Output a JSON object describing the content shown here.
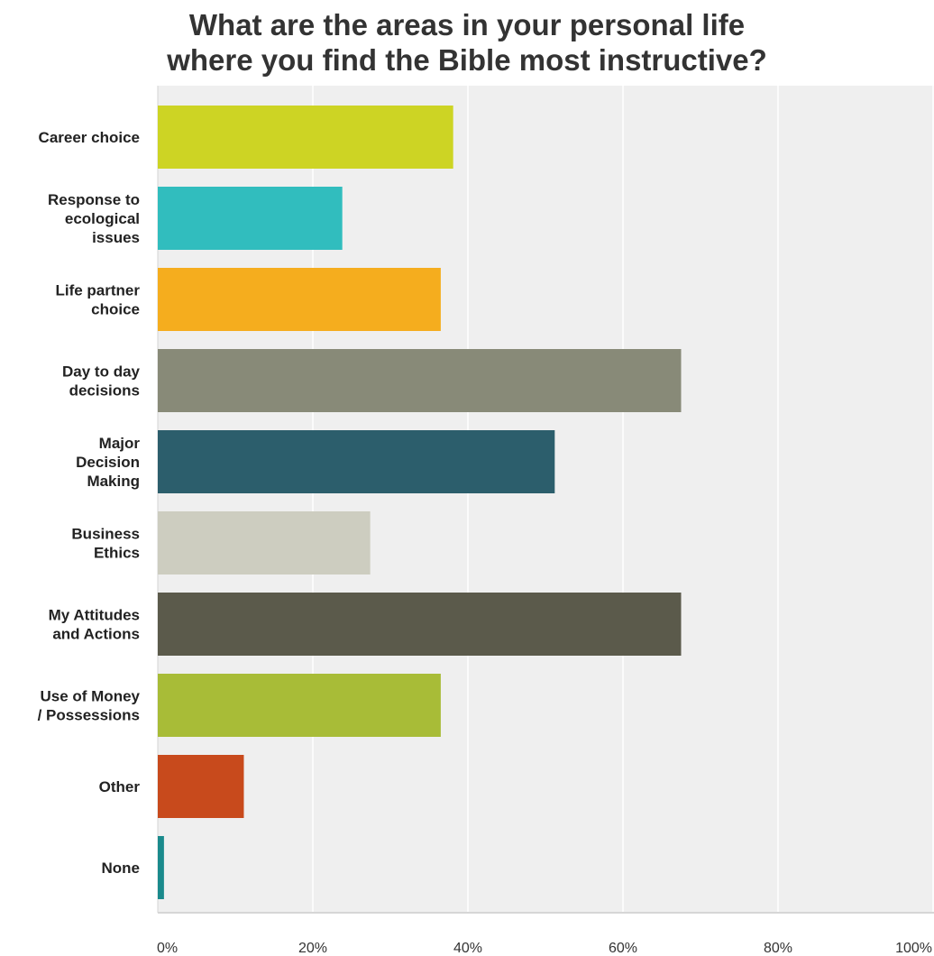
{
  "chart_data": {
    "type": "bar",
    "orientation": "horizontal",
    "title_lines": [
      "What are the areas in your personal life",
      "where you find the Bible most instructive?"
    ],
    "categories": [
      [
        "Career choice"
      ],
      [
        "Response to",
        "ecological",
        "issues"
      ],
      [
        "Life partner",
        "choice"
      ],
      [
        "Day to day",
        "decisions"
      ],
      [
        "Major",
        "Decision",
        "Making"
      ],
      [
        "Business",
        "Ethics"
      ],
      [
        "My Attitudes",
        "and Actions"
      ],
      [
        "Use of Money",
        "/ Possessions"
      ],
      [
        "Other"
      ],
      [
        "None"
      ]
    ],
    "values": [
      38.1,
      23.8,
      36.5,
      67.5,
      51.2,
      27.4,
      67.5,
      36.5,
      11.1,
      0.8
    ],
    "colors": [
      "#cdd424",
      "#31bdbe",
      "#f5ad1e",
      "#888a78",
      "#2c5e6c",
      "#cdcdc0",
      "#5b5a4b",
      "#a8bc37",
      "#c84a1c",
      "#1a8a8c"
    ],
    "xlim": [
      0,
      100
    ],
    "x_ticks": [
      0,
      20,
      40,
      60,
      80,
      100
    ],
    "x_tick_labels": [
      "0%",
      "20%",
      "40%",
      "60%",
      "80%",
      "100%"
    ],
    "grid": true
  }
}
